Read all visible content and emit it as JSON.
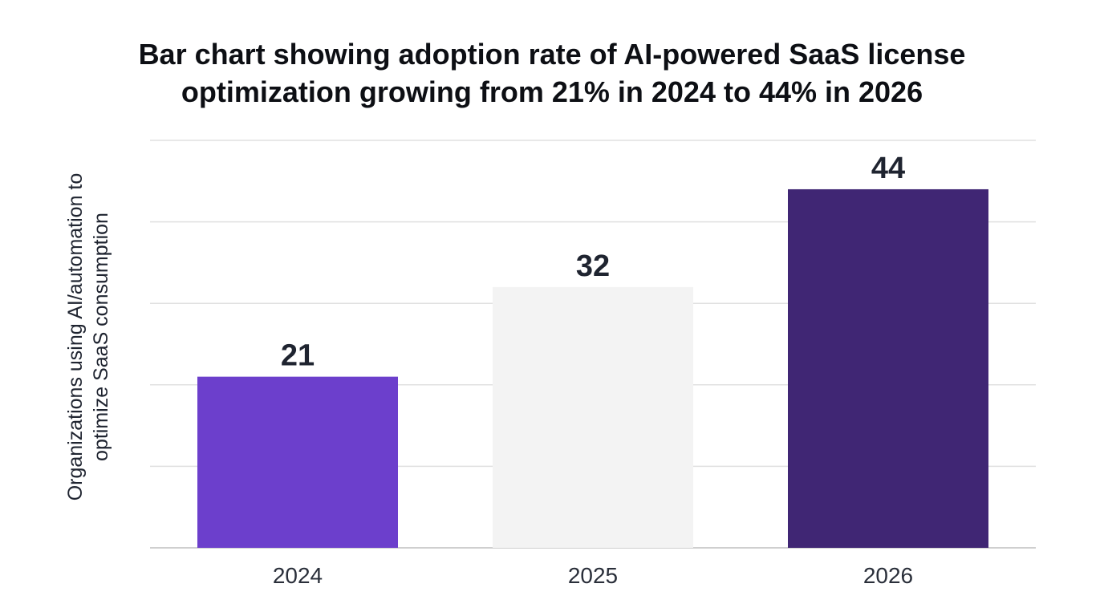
{
  "chart_data": {
    "type": "bar",
    "title_lines": [
      "Bar chart showing adoption rate of AI-powered SaaS license",
      "optimization growing from 21% in 2024 to 44% in 2026"
    ],
    "ylabel_lines": [
      "Organizations using AI/automation to",
      "optimize SaaS consumption"
    ],
    "xlabel": "",
    "categories": [
      "2024",
      "2025",
      "2026"
    ],
    "values": [
      21,
      32,
      44
    ],
    "bar_colors": [
      "#6c3fcc",
      "#f3f3f3",
      "#402674"
    ],
    "ylim": [
      0,
      50
    ],
    "gridlines": [
      0,
      10,
      20,
      30,
      40,
      50
    ],
    "grid": true,
    "data_labels": true,
    "legend": "none"
  }
}
